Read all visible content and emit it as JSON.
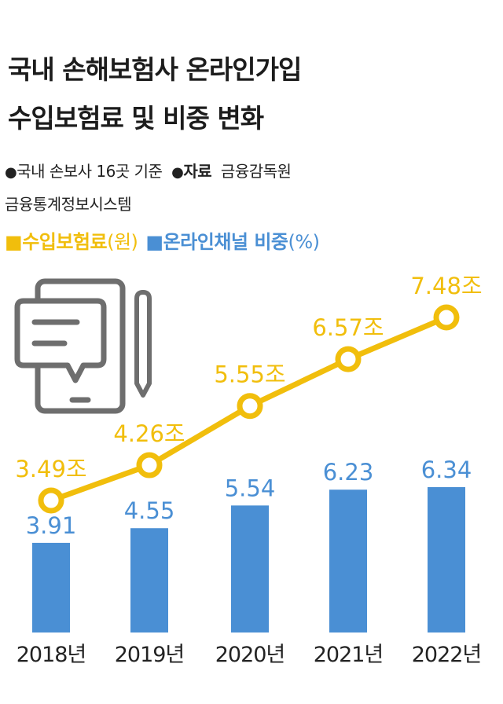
{
  "title_lines": [
    "국내 손해보험사 온라인가입",
    "수입보험료 및 비중 변화"
  ],
  "meta": {
    "basis": "국내 손보사 16곳 기준",
    "source_label": "자료",
    "source_1": "금융감독원",
    "source_2": "금융통계정보시스템"
  },
  "legend": {
    "premium_name": "수입보험료",
    "premium_unit": "(원)",
    "share_name": "온라인채널 비중",
    "share_unit": "(%)"
  },
  "colors": {
    "line": "#f1be0c",
    "bar": "#4a8fd4",
    "icon": "#6e6e6e"
  },
  "icon": "tablet-chat-pencil-icon",
  "chart_data": {
    "type": "bar+line",
    "categories": [
      "2018년",
      "2019년",
      "2020년",
      "2021년",
      "2022년"
    ],
    "series": [
      {
        "name": "온라인채널 비중",
        "unit": "%",
        "type": "bar",
        "values": [
          3.91,
          4.55,
          5.54,
          6.23,
          6.34
        ],
        "labels": [
          "3.91",
          "4.55",
          "5.54",
          "6.23",
          "6.34"
        ]
      },
      {
        "name": "수입보험료",
        "unit": "원",
        "type": "line",
        "values": [
          3.49,
          4.26,
          5.55,
          6.57,
          7.48
        ],
        "labels": [
          "3.49조",
          "4.26조",
          "5.55조",
          "6.57조",
          "7.48조"
        ]
      }
    ]
  }
}
